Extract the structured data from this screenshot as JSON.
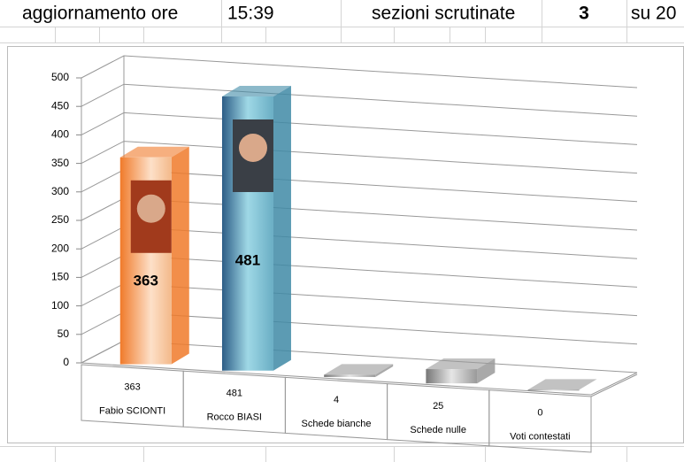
{
  "header": {
    "label": "aggiornamento ore",
    "time": "15:39",
    "sections_label": "sezioni scrutinate",
    "sections": 3,
    "total": "su 20"
  },
  "chart_data": {
    "type": "bar3d",
    "categories": [
      "Fabio SCIONTI",
      "Rocco BIASI",
      "Schede bianche",
      "Schede nulle",
      "Voti contestati"
    ],
    "values": [
      363,
      481,
      4,
      25,
      0
    ],
    "colors": [
      "#f07a2a",
      "#3f8aa6",
      "#9a9a9a",
      "#9a9a9a",
      "#9a9a9a"
    ],
    "data_labels_shown": [
      true,
      true,
      false,
      false,
      false
    ],
    "ylim": [
      0,
      500
    ],
    "yticks": [
      0,
      50,
      100,
      150,
      200,
      250,
      300,
      350,
      400,
      450,
      500
    ],
    "grid": true
  }
}
